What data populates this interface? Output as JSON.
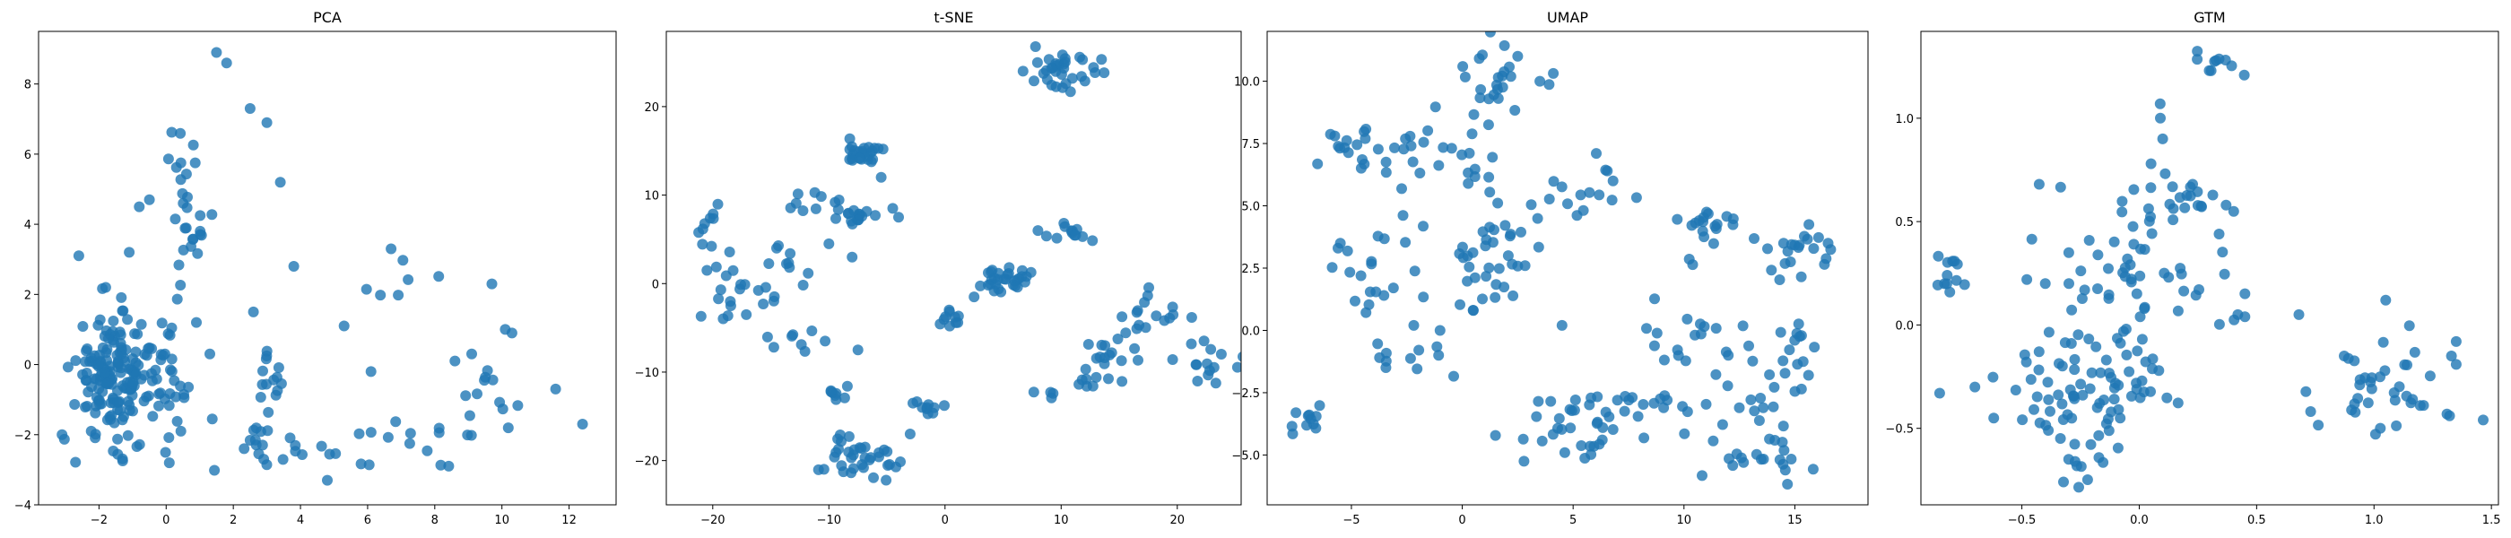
{
  "chart_data": [
    {
      "type": "scatter",
      "title": "PCA",
      "xlabel": "",
      "ylabel": "",
      "xlim": [
        -3.8,
        13.4
      ],
      "ylim": [
        -4.0,
        9.5
      ],
      "xticks": [
        -2,
        0,
        2,
        4,
        6,
        8,
        10,
        12
      ],
      "yticks": [
        -4,
        -2,
        0,
        2,
        4,
        6,
        8
      ],
      "series": [
        {
          "name": "points",
          "color": "#1f77b4",
          "clusters": [
            {
              "cx": -1.6,
              "cy": -0.3,
              "sx": 0.55,
              "sy": 0.9,
              "n": 150
            },
            {
              "cx": -0.3,
              "cy": -0.6,
              "sx": 0.45,
              "sy": 0.7,
              "n": 45
            },
            {
              "cx": 0.7,
              "cy": 3.7,
              "sx": 0.3,
              "sy": 1.0,
              "n": 22
            },
            {
              "cx": 0.4,
              "cy": 5.5,
              "sx": 0.3,
              "sy": 0.5,
              "n": 8
            },
            {
              "cx": 3.2,
              "cy": -0.4,
              "sx": 0.35,
              "sy": 0.6,
              "n": 14
            },
            {
              "cx": 2.2,
              "cy": -2.3,
              "sx": 0.6,
              "sy": 0.35,
              "n": 14
            },
            {
              "cx": 4.2,
              "cy": -2.6,
              "sx": 0.6,
              "sy": 0.4,
              "n": 8
            },
            {
              "cx": 7.5,
              "cy": -2.4,
              "sx": 1.0,
              "sy": 0.35,
              "n": 14
            },
            {
              "cx": 9.6,
              "cy": -0.9,
              "sx": 0.4,
              "sy": 0.6,
              "n": 12
            },
            {
              "cx": 7.0,
              "cy": 2.4,
              "sx": 0.6,
              "sy": 0.4,
              "n": 6
            }
          ],
          "points": [
            [
              1.5,
              8.9
            ],
            [
              1.8,
              8.6
            ],
            [
              2.5,
              7.3
            ],
            [
              3.0,
              6.9
            ],
            [
              3.4,
              5.2
            ],
            [
              3.8,
              2.8
            ],
            [
              5.3,
              1.1
            ],
            [
              6.1,
              -0.2
            ],
            [
              6.7,
              3.3
            ],
            [
              10.1,
              1.0
            ],
            [
              10.3,
              0.9
            ],
            [
              11.6,
              -0.7
            ],
            [
              12.4,
              -1.7
            ],
            [
              9.7,
              2.3
            ],
            [
              4.8,
              -3.3
            ],
            [
              -3.1,
              -2.0
            ],
            [
              -2.6,
              3.1
            ],
            [
              -1.8,
              2.2
            ],
            [
              -1.1,
              3.2
            ],
            [
              -0.8,
              4.5
            ],
            [
              -0.5,
              4.7
            ],
            [
              0.9,
              1.2
            ],
            [
              1.3,
              0.3
            ],
            [
              2.6,
              1.5
            ],
            [
              8.6,
              0.1
            ],
            [
              9.1,
              0.3
            ]
          ]
        }
      ]
    },
    {
      "type": "scatter",
      "title": "t-SNE",
      "xlabel": "",
      "ylabel": "",
      "xlim": [
        -24.0,
        25.5
      ],
      "ylim": [
        -25.0,
        28.5
      ],
      "xticks": [
        -20,
        -10,
        0,
        10,
        20
      ],
      "yticks": [
        -20,
        -10,
        0,
        10,
        20
      ],
      "series": [
        {
          "name": "points",
          "color": "#1f77b4",
          "clusters": [
            {
              "cx": -7.0,
              "cy": 14.8,
              "sx": 1.0,
              "sy": 0.8,
              "n": 25
            },
            {
              "cx": -7.5,
              "cy": 7.5,
              "sx": 0.8,
              "sy": 0.6,
              "n": 15
            },
            {
              "cx": 9.5,
              "cy": 24.0,
              "sx": 1.3,
              "sy": 1.3,
              "n": 28
            },
            {
              "cx": 12.5,
              "cy": 23.2,
              "sx": 1.5,
              "sy": 0.8,
              "n": 6
            },
            {
              "cx": -20.0,
              "cy": 6.5,
              "sx": 0.8,
              "sy": 1.5,
              "n": 10
            },
            {
              "cx": -17.0,
              "cy": -1.5,
              "sx": 2.0,
              "sy": 2.0,
              "n": 20
            },
            {
              "cx": -11.0,
              "cy": 9.0,
              "sx": 1.2,
              "sy": 1.2,
              "n": 10
            },
            {
              "cx": -13.5,
              "cy": 3.0,
              "sx": 1.2,
              "sy": 1.2,
              "n": 6
            },
            {
              "cx": -12.5,
              "cy": -7.0,
              "sx": 1.2,
              "sy": 0.8,
              "n": 8
            },
            {
              "cx": 0.5,
              "cy": -4.0,
              "sx": 0.8,
              "sy": 0.5,
              "n": 10
            },
            {
              "cx": 5.5,
              "cy": 0.5,
              "sx": 1.0,
              "sy": 0.8,
              "n": 30
            },
            {
              "cx": 11.5,
              "cy": 5.8,
              "sx": 1.2,
              "sy": 0.6,
              "n": 12
            },
            {
              "cx": -9.0,
              "cy": -12.5,
              "sx": 0.7,
              "sy": 0.7,
              "n": 8
            },
            {
              "cx": -7.5,
              "cy": -19.5,
              "sx": 1.5,
              "sy": 1.3,
              "n": 35
            },
            {
              "cx": -1.5,
              "cy": -14.0,
              "sx": 0.8,
              "sy": 0.8,
              "n": 10
            },
            {
              "cx": 14.0,
              "cy": -8.0,
              "sx": 1.5,
              "sy": 1.5,
              "n": 15
            },
            {
              "cx": 13.0,
              "cy": -10.8,
              "sx": 1.2,
              "sy": 0.5,
              "n": 8
            },
            {
              "cx": 18.0,
              "cy": -3.5,
              "sx": 1.5,
              "sy": 1.5,
              "n": 15
            },
            {
              "cx": 22.5,
              "cy": -9.0,
              "sx": 1.3,
              "sy": 1.2,
              "n": 15
            },
            {
              "cx": 9.0,
              "cy": -12.5,
              "sx": 0.6,
              "sy": 0.6,
              "n": 4
            }
          ],
          "points": [
            [
              -20.5,
              1.5
            ],
            [
              -21.0,
              -3.7
            ],
            [
              -14.5,
              4.0
            ],
            [
              -10.0,
              4.5
            ],
            [
              -8.0,
              3.0
            ],
            [
              -4.5,
              8.5
            ],
            [
              -5.5,
              12.0
            ],
            [
              -4.0,
              7.5
            ],
            [
              -7.5,
              -7.5
            ],
            [
              -3.0,
              -17.0
            ],
            [
              8.0,
              6.0
            ],
            [
              2.5,
              -1.5
            ]
          ]
        }
      ]
    },
    {
      "type": "scatter",
      "title": "UMAP",
      "xlabel": "",
      "ylabel": "",
      "xlim": [
        -8.8,
        18.3
      ],
      "ylim": [
        -7.0,
        12.0
      ],
      "xticks": [
        -5,
        0,
        5,
        10,
        15
      ],
      "yticks": [
        -5.0,
        -2.5,
        0.0,
        2.5,
        5.0,
        7.5,
        10.0
      ],
      "series": [
        {
          "name": "points",
          "color": "#1f77b4",
          "clusters": [
            {
              "cx": -7.0,
              "cy": -3.8,
              "sx": 0.5,
              "sy": 0.3,
              "n": 10
            },
            {
              "cx": -5.0,
              "cy": 7.5,
              "sx": 0.6,
              "sy": 0.5,
              "n": 12
            },
            {
              "cx": -3.2,
              "cy": 6.6,
              "sx": 1.2,
              "sy": 0.7,
              "n": 18
            },
            {
              "cx": -0.5,
              "cy": 7.2,
              "sx": 1.0,
              "sy": 0.6,
              "n": 10
            },
            {
              "cx": 1.0,
              "cy": 9.8,
              "sx": 1.2,
              "sy": 0.8,
              "n": 25
            },
            {
              "cx": -4.0,
              "cy": 2.5,
              "sx": 1.0,
              "sy": 1.0,
              "n": 20
            },
            {
              "cx": -2.5,
              "cy": -1.0,
              "sx": 0.8,
              "sy": 0.6,
              "n": 12
            },
            {
              "cx": 0.8,
              "cy": 2.0,
              "sx": 1.0,
              "sy": 1.0,
              "n": 20
            },
            {
              "cx": 2.5,
              "cy": 4.0,
              "sx": 1.3,
              "sy": 1.2,
              "n": 20
            },
            {
              "cx": 5.8,
              "cy": 5.3,
              "sx": 1.0,
              "sy": 0.6,
              "n": 12
            },
            {
              "cx": 10.8,
              "cy": 4.0,
              "sx": 0.8,
              "sy": 1.0,
              "n": 20
            },
            {
              "cx": 15.2,
              "cy": 3.2,
              "sx": 1.0,
              "sy": 0.7,
              "n": 20
            },
            {
              "cx": 10.0,
              "cy": 0.0,
              "sx": 1.3,
              "sy": 0.6,
              "n": 15
            },
            {
              "cx": 15.0,
              "cy": -0.5,
              "sx": 0.6,
              "sy": 0.6,
              "n": 10
            },
            {
              "cx": 5.0,
              "cy": -4.0,
              "sx": 1.5,
              "sy": 1.0,
              "n": 35
            },
            {
              "cx": 10.0,
              "cy": -3.0,
              "sx": 2.0,
              "sy": 0.5,
              "n": 20
            },
            {
              "cx": 13.5,
              "cy": -5.0,
              "sx": 1.5,
              "sy": 1.0,
              "n": 25
            },
            {
              "cx": 14.0,
              "cy": -1.8,
              "sx": 1.0,
              "sy": 0.8,
              "n": 10
            }
          ],
          "points": [
            [
              2.5,
              11.0
            ],
            [
              3.5,
              10.0
            ],
            [
              -1.0,
              0.0
            ],
            [
              0.5,
              0.8
            ],
            [
              7.0,
              -2.8
            ],
            [
              12.0,
              -1.0
            ],
            [
              16.5,
              3.5
            ],
            [
              -5.5,
              3.5
            ],
            [
              4.5,
              0.2
            ],
            [
              6.8,
              6.0
            ],
            [
              -7.5,
              -3.3
            ]
          ]
        }
      ]
    },
    {
      "type": "scatter",
      "title": "GTM",
      "xlabel": "",
      "ylabel": "",
      "xlim": [
        -0.93,
        1.53
      ],
      "ylim": [
        -0.87,
        1.42
      ],
      "xticks": [
        -0.5,
        0.0,
        0.5,
        1.0,
        1.5
      ],
      "yticks": [
        -0.5,
        0.0,
        0.5,
        1.0
      ],
      "series": [
        {
          "name": "points",
          "color": "#1f77b4",
          "clusters": [
            {
              "cx": -0.81,
              "cy": 0.24,
              "sx": 0.03,
              "sy": 0.05,
              "n": 12
            },
            {
              "cx": -0.35,
              "cy": -0.35,
              "sx": 0.12,
              "sy": 0.15,
              "n": 40
            },
            {
              "cx": -0.05,
              "cy": -0.3,
              "sx": 0.12,
              "sy": 0.15,
              "n": 35
            },
            {
              "cx": -0.15,
              "cy": 0.15,
              "sx": 0.15,
              "sy": 0.2,
              "n": 30
            },
            {
              "cx": 0.05,
              "cy": 0.45,
              "sx": 0.1,
              "sy": 0.25,
              "n": 25
            },
            {
              "cx": 0.2,
              "cy": 0.6,
              "sx": 0.1,
              "sy": 0.05,
              "n": 15
            },
            {
              "cx": -0.2,
              "cy": -0.65,
              "sx": 0.08,
              "sy": 0.08,
              "n": 10
            },
            {
              "cx": 0.3,
              "cy": 1.28,
              "sx": 0.06,
              "sy": 0.03,
              "n": 10
            },
            {
              "cx": 1.1,
              "cy": -0.3,
              "sx": 0.15,
              "sy": 0.15,
              "n": 40
            },
            {
              "cx": 0.3,
              "cy": 0.2,
              "sx": 0.1,
              "sy": 0.1,
              "n": 8
            }
          ],
          "points": [
            [
              -0.85,
              -0.33
            ],
            [
              -0.7,
              -0.3
            ],
            [
              -0.62,
              -0.45
            ],
            [
              0.42,
              0.05
            ],
            [
              0.45,
              0.04
            ],
            [
              0.68,
              0.05
            ],
            [
              1.35,
              -0.08
            ],
            [
              1.33,
              -0.15
            ],
            [
              1.05,
              0.12
            ],
            [
              0.09,
              1.0
            ],
            [
              0.1,
              0.9
            ],
            [
              0.37,
              0.58
            ],
            [
              -0.4,
              0.2
            ],
            [
              -0.3,
              0.35
            ],
            [
              0.05,
              0.78
            ]
          ]
        }
      ]
    }
  ]
}
